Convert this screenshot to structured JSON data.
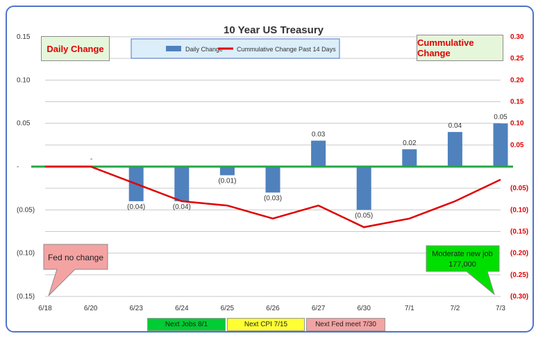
{
  "chart_data": {
    "type": "bar",
    "title": "10 Year US Treasury",
    "categories": [
      "6/18",
      "6/20",
      "6/23",
      "6/24",
      "6/25",
      "6/26",
      "6/27",
      "6/30",
      "7/1",
      "7/2",
      "7/3"
    ],
    "series": [
      {
        "name": "Daily Change",
        "type": "bar",
        "axis": "left",
        "values": [
          0,
          0,
          -0.04,
          -0.04,
          -0.01,
          -0.03,
          0.03,
          -0.05,
          0.02,
          0.04,
          0.05
        ],
        "labels": [
          "",
          "-",
          "(0.04)",
          "(0.04)",
          "(0.01)",
          "(0.03)",
          "0.03",
          "(0.05)",
          "0.02",
          "0.04",
          "0.05"
        ],
        "color": "#4f81bd"
      },
      {
        "name": "Cummulative Change Past 14 Days",
        "type": "line",
        "axis": "right",
        "values": [
          0,
          0,
          -0.04,
          -0.08,
          -0.09,
          -0.12,
          -0.09,
          -0.14,
          -0.12,
          -0.08,
          -0.03
        ],
        "color": "#e00000"
      }
    ],
    "left_axis": {
      "ylim": [
        -0.15,
        0.15
      ],
      "ticks": [
        -0.15,
        -0.1,
        -0.05,
        0,
        0.05,
        0.1,
        0.15
      ],
      "tick_labels": [
        "(0.15)",
        "(0.10)",
        "(0.05)",
        "-",
        "0.05",
        "0.10",
        "0.15"
      ]
    },
    "right_axis": {
      "ylim": [
        -0.3,
        0.3
      ],
      "ticks": [
        -0.3,
        -0.25,
        -0.2,
        -0.15,
        -0.1,
        -0.05,
        0.05,
        0.1,
        0.15,
        0.2,
        0.25,
        0.3
      ],
      "tick_labels": [
        "(0.30)",
        "(0.25)",
        "(0.20)",
        "(0.15)",
        "(0.10)",
        "(0.05)",
        "0.05",
        "0.10",
        "0.15",
        "0.20",
        "0.25",
        "0.30"
      ],
      "color": "#e00000"
    },
    "grid": true,
    "legend_position": "top-center",
    "zero_line_color": "#22a845"
  },
  "labels": {
    "left_axis_title": "Daily Change",
    "right_axis_title": "Cummulative Change"
  },
  "callouts": {
    "fed": "Fed no change",
    "jobs_line1": "Moderate new job",
    "jobs_line2": "177,000"
  },
  "footer": {
    "next_jobs": "Next Jobs 8/1",
    "next_cpi": "Next CPI 7/15",
    "next_fed": "Next Fed meet 7/30"
  },
  "colors": {
    "frame": "#4f73c9",
    "label_box_bg": "#e6f6da",
    "fed_callout": "#f4a3a3",
    "jobs_callout": "#00e000",
    "next_jobs_bg": "#00cc33",
    "next_cpi_bg": "#ffff33",
    "next_fed_bg": "#f4a3a3"
  }
}
